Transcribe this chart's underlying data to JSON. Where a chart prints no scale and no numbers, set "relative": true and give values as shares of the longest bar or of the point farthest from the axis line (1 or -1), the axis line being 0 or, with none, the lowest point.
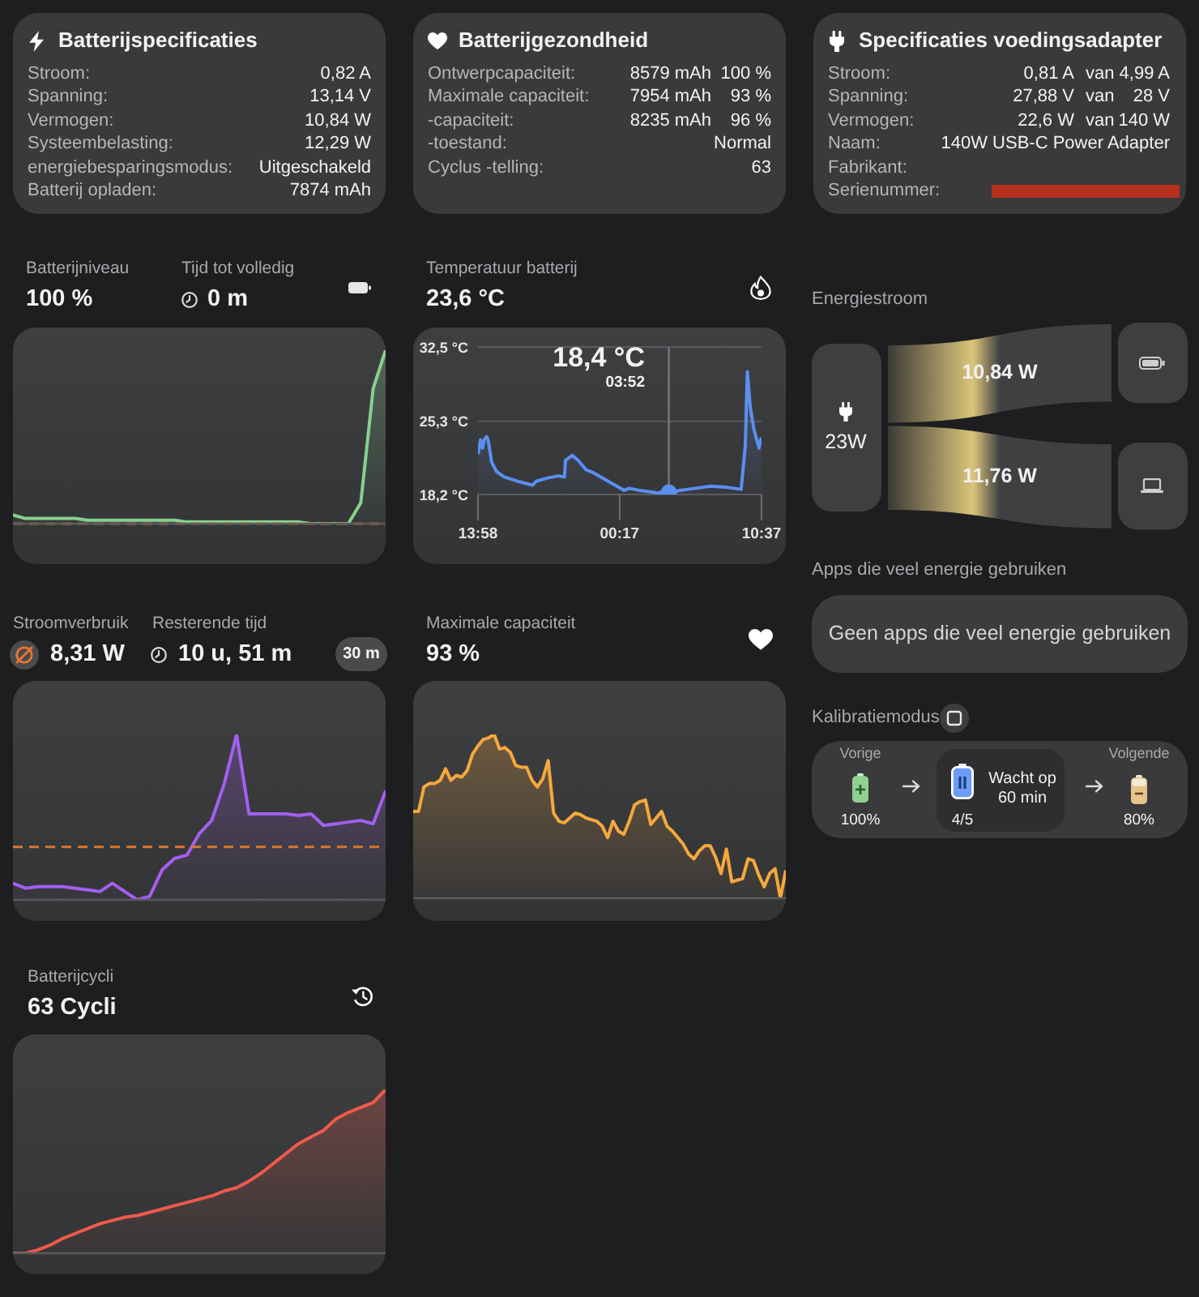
{
  "chart_data": [
    {
      "type": "other",
      "title": "Batterijspecificaties",
      "annotations": [
        "Stroom:",
        "0,82 A",
        "Spanning:",
        "13,14 V",
        "Vermogen:",
        "10,84 W",
        "Systeembelasting:",
        "12,29 W",
        "energiebesparingsmodus:",
        "Uitgeschakeld",
        "Batterij opladen:",
        "7874 mAh"
      ]
    },
    {
      "type": "other",
      "title": "Batterijgezondheid",
      "annotations": [
        "Ontwerpcapaciteit:",
        "8579 mAh",
        "100 %",
        "Maximale capaciteit:",
        "7954 mAh",
        "93 %",
        "-capaciteit:",
        "8235 mAh",
        "96 %",
        "-toestand:",
        "Normal",
        "Cyclus -telling:",
        "63"
      ]
    },
    {
      "type": "other",
      "title": "Specificaties voedingsadapter",
      "annotations": [
        "Stroom:",
        "0,81 A",
        "van",
        "4,99 A",
        "Spanning:",
        "27,88 V",
        "van",
        "28 V",
        "Vermogen:",
        "22,6 W",
        "van",
        "140 W",
        "Naam:",
        "140W USB-C Power Adapter",
        "Fabrikant:",
        "Serienummer:"
      ]
    },
    {
      "type": "area",
      "title": "Batterijniveau",
      "subtitle": "100 %",
      "annotations": [
        "Tijd tot volledig",
        "0 m"
      ],
      "relative": true,
      "categories": [
        null,
        null,
        null,
        null,
        null,
        null,
        null,
        null,
        null,
        null,
        null,
        null,
        null,
        null,
        null,
        null,
        null,
        null,
        null,
        null,
        null,
        null,
        null,
        null,
        null,
        null,
        null,
        null,
        null,
        null,
        null
      ],
      "values": [
        0.05,
        0.03,
        0.03,
        0.03,
        0.03,
        0.03,
        0.02,
        0.02,
        0.02,
        0.02,
        0.02,
        0.02,
        0.02,
        0.02,
        0.01,
        0.01,
        0.01,
        0.01,
        0.01,
        0.01,
        0.01,
        0.01,
        0.01,
        0.01,
        0,
        0,
        0,
        0,
        0.12,
        0.78,
        1
      ],
      "color": "#86d08e",
      "ref_lines": [
        {
          "axis": "y",
          "value": 0,
          "color": "#d9772f",
          "line_style": "dashed"
        }
      ]
    },
    {
      "type": "area",
      "title": "Temperatuur batterij",
      "subtitle": "23,6 °C",
      "annotations": [
        "18,4 °C",
        "03:52"
      ],
      "series": [
        {
          "x": [
            "--01-01T13:58",
            "--01-01T14:09",
            "--01-01T14:18",
            "--01-01T14:25",
            "--01-01T14:36",
            "--01-01T14:43",
            "--01-01T14:58",
            "--01-01T15:20",
            "--01-01T15:53",
            "--01-01T16:49",
            "--01-01T17:56",
            "--01-01T18:14",
            "--01-01T19:03",
            "--01-01T19:47",
            "--01-01T20:16",
            "--01-01T20:20",
            "--01-01T20:50",
            "--01-01T21:16",
            "--01-01T21:50",
            "--01-01T22:23",
            "--01-01T23:41",
            "--01-02T00:37",
            "--01-02T00:59",
            "--01-02T01:43",
            "--01-02T02:50",
            "--01-02T03:01",
            "--01-02T03:12",
            "--01-02T03:52",
            "--01-02T04:41",
            "--01-02T05:48",
            "--01-02T06:55",
            "--01-02T08:01",
            "--01-02T09:08",
            "--01-02T09:26",
            "--01-02T09:35",
            "--01-02T09:48",
            "--01-02T10:04",
            "--01-02T10:26",
            "--01-02T10:36"
          ],
          "values": [
            22.1,
            23.5,
            22.7,
            23.5,
            23.8,
            23.4,
            21.3,
            20.4,
            19.9,
            19.5,
            19.1,
            19.5,
            19.8,
            20.0,
            19.9,
            21.5,
            22.0,
            21.5,
            20.6,
            20.3,
            19.3,
            18.6,
            18.8,
            18.6,
            18.4,
            18.3,
            18.4,
            18.4,
            18.6,
            18.8,
            19.0,
            18.9,
            18.7,
            22.9,
            30.1,
            26.6,
            24.5,
            22.7,
            23.7
          ],
          "color": "#5b8ff0"
        },
        {
          "type": "scatter",
          "x": [
            "--01-02T03:52"
          ],
          "values": [
            18.4
          ],
          "color": "#5b8ff0"
        }
      ],
      "xlim": [
        "--01-01T13:58",
        "--01-02T10:37"
      ],
      "xticks": [
        {
          "value": "--01-01T13:58",
          "label": "13:58"
        },
        {
          "value": "--01-02T00:17",
          "label": "00:17"
        },
        {
          "value": "--01-02T10:37",
          "label": "10:37"
        }
      ],
      "ylim": [
        18.2,
        32.5
      ],
      "yticks": [
        {
          "value": 18.2,
          "label": "18,2 °C"
        },
        {
          "value": 25.3,
          "label": "25,3 °C"
        },
        {
          "value": 32.5,
          "label": "32,5 °C"
        }
      ],
      "grid": "y",
      "ref_lines": [
        {
          "axis": "x",
          "value": "--01-02T03:52",
          "color": "#6e6e72"
        }
      ]
    },
    {
      "type": "other",
      "title": "Energiestroom",
      "categories": [
        null,
        null
      ],
      "values": [
        10.84,
        11.76
      ],
      "value_labels": [
        "10,84 W",
        "11,76 W"
      ],
      "annotations": [
        "23W"
      ],
      "color": "#dcc57a"
    },
    {
      "type": "area",
      "title": "Stroomverbruik",
      "subtitle": "8,31 W",
      "annotations": [
        "Resterende tijd",
        "10 u, 51 m",
        "30 m"
      ],
      "relative": true,
      "categories": [
        null,
        null,
        null,
        null,
        null,
        null,
        null,
        null,
        null,
        null,
        null,
        null,
        null,
        null,
        null,
        null,
        null,
        null,
        null,
        null,
        null,
        null,
        null,
        null,
        null,
        null,
        null,
        null,
        null,
        null,
        null
      ],
      "values": [
        0.1,
        0.07,
        0.08,
        0.08,
        0.08,
        0.07,
        0.06,
        0.05,
        0.1,
        0.05,
        0,
        0.02,
        0.18,
        0.25,
        0.27,
        0.4,
        0.48,
        0.7,
        1,
        0.52,
        0.52,
        0.52,
        0.52,
        0.51,
        0.52,
        0.45,
        0.46,
        0.47,
        0.48,
        0.46,
        0.66
      ],
      "color": "#a35ff0",
      "ref_lines": [
        {
          "axis": "y",
          "value": 0.32,
          "color": "#d9772f",
          "line_style": "dashed"
        }
      ]
    },
    {
      "type": "area",
      "title": "Maximale capaciteit",
      "subtitle": "93 %",
      "relative": true,
      "categories": [
        null,
        null,
        null,
        null,
        null,
        null,
        null,
        null,
        null,
        null,
        null,
        null,
        null,
        null,
        null,
        null,
        null,
        null,
        null,
        null,
        null,
        null,
        null,
        null,
        null,
        null,
        null,
        null,
        null,
        null,
        null,
        null,
        null,
        null,
        null,
        null,
        null,
        null,
        null,
        null,
        null,
        null,
        null,
        null,
        null,
        null,
        null,
        null,
        null,
        null,
        null,
        null,
        null,
        null,
        null,
        null,
        null,
        null,
        null,
        null,
        null,
        null,
        null,
        null,
        null,
        null,
        null,
        null,
        null,
        null
      ],
      "values": [
        0.53,
        0.53,
        0.68,
        0.7,
        0.7,
        0.72,
        0.79,
        0.72,
        0.75,
        0.74,
        0.78,
        0.88,
        0.93,
        0.97,
        0.98,
        1,
        0.91,
        0.92,
        0.89,
        0.81,
        0.8,
        0.8,
        0.72,
        0.68,
        0.73,
        0.84,
        0.52,
        0.47,
        0.46,
        0.49,
        0.52,
        0.51,
        0.49,
        0.48,
        0.47,
        0.44,
        0.37,
        0.47,
        0.41,
        0.39,
        0.47,
        0.57,
        0.59,
        0.6,
        0.45,
        0.49,
        0.53,
        0.44,
        0.41,
        0.37,
        0.33,
        0.27,
        0.24,
        0.29,
        0.32,
        0.32,
        0.25,
        0.15,
        0.3,
        0.1,
        0.11,
        0.12,
        0.24,
        0.23,
        0.14,
        0.07,
        0.15,
        0.18,
        0,
        0.17
      ],
      "color": "#f5a83c"
    },
    {
      "type": "other",
      "title": "Apps die veel energie gebruiken",
      "annotations": [
        "Geen apps die veel energie gebruiken"
      ]
    },
    {
      "type": "other",
      "title": "Kalibratiemodus",
      "annotations": [
        "Vorige",
        "100%",
        "4/5",
        "Wacht op 60 min",
        "Volgende",
        "80%"
      ]
    },
    {
      "type": "area",
      "title": "Batterijcycli",
      "subtitle": "63 Cycli",
      "relative": true,
      "categories": [
        null,
        null,
        null,
        null,
        null,
        null,
        null,
        null,
        null,
        null,
        null,
        null,
        null,
        null,
        null,
        null,
        null,
        null,
        null,
        null,
        null,
        null,
        null,
        null,
        null,
        null,
        null,
        null,
        null,
        null,
        null
      ],
      "values": [
        0,
        0,
        0.02,
        0.05,
        0.09,
        0.12,
        0.15,
        0.18,
        0.2,
        0.22,
        0.23,
        0.25,
        0.27,
        0.29,
        0.31,
        0.33,
        0.35,
        0.38,
        0.4,
        0.44,
        0.49,
        0.55,
        0.61,
        0.67,
        0.71,
        0.75,
        0.82,
        0.86,
        0.89,
        0.92,
        1
      ],
      "color": "#ee5a4b"
    }
  ]
}
